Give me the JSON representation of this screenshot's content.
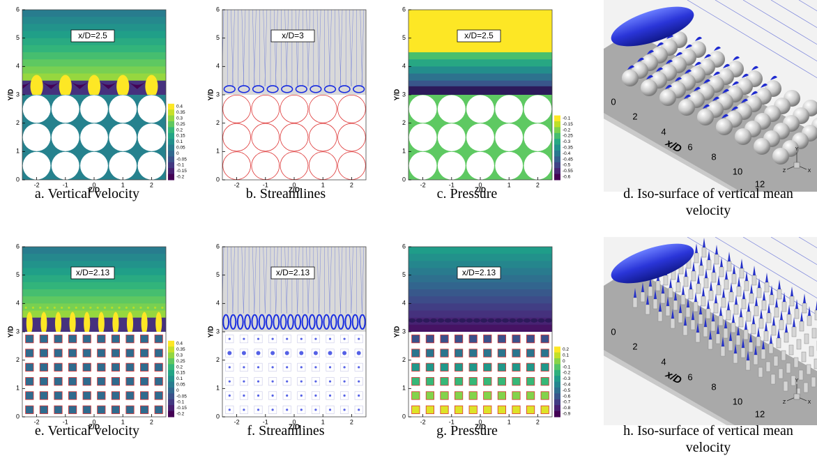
{
  "panels": [
    {
      "label": "x/D=2.5",
      "caption": "a. Vertical velocity",
      "y_axis": "Y/D",
      "x_axis": "Z/D",
      "yticks": [
        "0",
        "1",
        "2",
        "3",
        "4",
        "5",
        "6"
      ],
      "xticks": [
        "-2",
        "-1",
        "0",
        "1",
        "2"
      ],
      "colorbar": [
        "0.4",
        "0.35",
        "0.3",
        "0.25",
        "0.2",
        "0.15",
        "0.1",
        "0.05",
        "0",
        "-0.05",
        "-0.1",
        "-0.15",
        "-0.2"
      ]
    },
    {
      "label": "x/D=3",
      "caption": "b. Streamlines",
      "y_axis": "Y/D",
      "x_axis": "Z/D",
      "yticks": [
        "0",
        "1",
        "2",
        "3",
        "4",
        "5",
        "6"
      ],
      "xticks": [
        "-2",
        "-1",
        "0",
        "1",
        "2"
      ]
    },
    {
      "label": "x/D=2.5",
      "caption": "c. Pressure",
      "y_axis": "Y/D",
      "x_axis": "Z/D",
      "yticks": [
        "0",
        "1",
        "2",
        "3",
        "4",
        "5",
        "6"
      ],
      "xticks": [
        "-2",
        "-1",
        "0",
        "1",
        "2"
      ],
      "colorbar": [
        "-0.1",
        "-0.15",
        "-0.2",
        "-0.25",
        "-0.3",
        "-0.35",
        "-0.4",
        "-0.45",
        "-0.5",
        "-0.55",
        "-0.6"
      ]
    },
    {
      "caption": "d. Iso-surface of vertical mean velocity",
      "x_axis": "x/D",
      "xticks": [
        "0",
        "2",
        "4",
        "6",
        "8",
        "10",
        "12"
      ],
      "triad": [
        "Y",
        "Z",
        "X"
      ]
    },
    {
      "label": "x/D=2.13",
      "caption": "e. Vertical velocity",
      "y_axis": "Y/D",
      "x_axis": "Z/D",
      "yticks": [
        "0",
        "1",
        "2",
        "3",
        "4",
        "5",
        "6"
      ],
      "xticks": [
        "-2",
        "-1",
        "0",
        "1",
        "2"
      ],
      "colorbar": [
        "0.4",
        "0.35",
        "0.3",
        "0.25",
        "0.2",
        "0.15",
        "0.1",
        "0.05",
        "0",
        "-0.05",
        "-0.1",
        "-0.15",
        "-0.2"
      ]
    },
    {
      "label": "x/D=2.13",
      "caption": "f. Streamlines",
      "y_axis": "Y/D",
      "x_axis": "Z/D",
      "yticks": [
        "0",
        "1",
        "2",
        "3",
        "4",
        "5",
        "6"
      ],
      "xticks": [
        "-2",
        "-1",
        "0",
        "1",
        "2"
      ]
    },
    {
      "label": "x/D=2.13",
      "caption": "g. Pressure",
      "y_axis": "Y/D",
      "x_axis": "Z/D",
      "yticks": [
        "0",
        "1",
        "2",
        "3",
        "4",
        "5",
        "6"
      ],
      "xticks": [
        "-2",
        "-1",
        "0",
        "1",
        "2"
      ],
      "colorbar": [
        "0.2",
        "0.1",
        "0",
        "-0.1",
        "-0.2",
        "-0.3",
        "-0.4",
        "-0.5",
        "-0.6",
        "-0.7",
        "-0.8",
        "-0.9"
      ]
    },
    {
      "caption": "h. Iso-surface of vertical mean velocity",
      "x_axis": "x/D",
      "xticks": [
        "0",
        "2",
        "4",
        "6",
        "8",
        "10",
        "12"
      ],
      "triad": [
        "Y",
        "Z",
        "X"
      ]
    }
  ]
}
